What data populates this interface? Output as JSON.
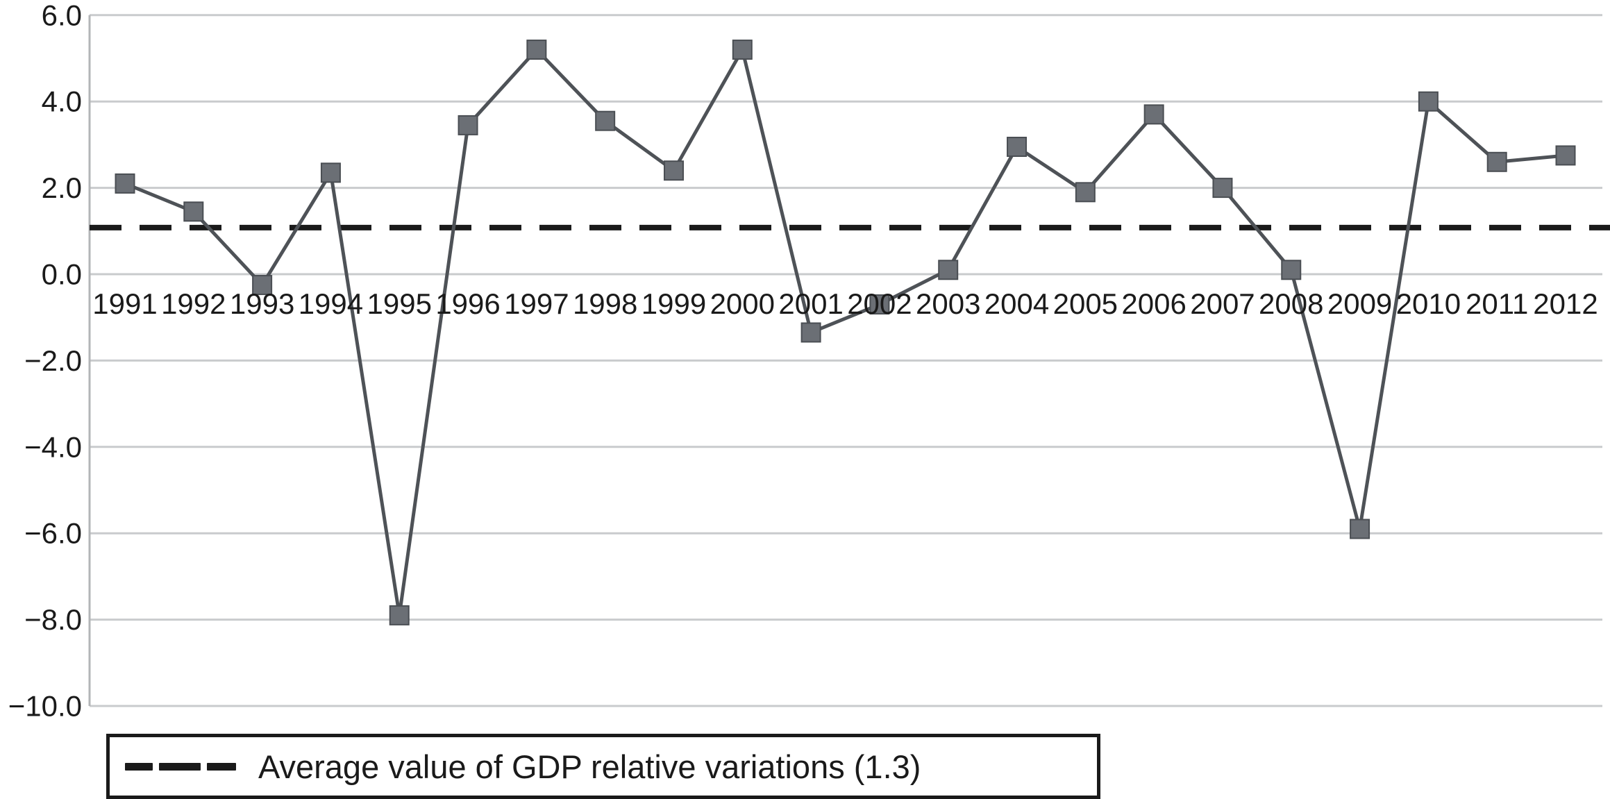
{
  "colors": {
    "background": "#ffffff",
    "gridline": "#c9cbcd",
    "axis_line": "#b3b5b7",
    "series_line": "#4e5257",
    "marker_fill": "#6b6f75",
    "marker_stroke": "#4a4e53",
    "average_line": "#1a1a1a",
    "text": "#1a1a1a"
  },
  "chart_data": {
    "type": "line",
    "title": "",
    "xlabel": "",
    "ylabel": "",
    "categories": [
      "1991",
      "1992",
      "1993",
      "1994",
      "1995",
      "1996",
      "1997",
      "1998",
      "1999",
      "2000",
      "2001",
      "2002",
      "2003",
      "2004",
      "2005",
      "2006",
      "2007",
      "2008",
      "2009",
      "2010",
      "2011",
      "2012"
    ],
    "series": [
      {
        "name": "GDP relative variations",
        "marker": "square",
        "values": [
          2.1,
          1.45,
          -0.25,
          2.35,
          -7.9,
          3.45,
          5.2,
          3.55,
          2.4,
          5.2,
          -1.35,
          -0.7,
          0.1,
          2.95,
          1.9,
          3.7,
          2.0,
          0.1,
          -5.9,
          4.0,
          2.6,
          2.75
        ]
      }
    ],
    "yticks": [
      6.0,
      4.0,
      2.0,
      0.0,
      -2.0,
      -4.0,
      -6.0,
      -8.0,
      -10.0
    ],
    "ylim": [
      -10.0,
      6.0
    ],
    "grid": true,
    "average_line": {
      "value": 1.3,
      "style": "dashed",
      "label": "Average value of GDP relative variations (1.3)"
    },
    "legend_position": "bottom-left"
  }
}
